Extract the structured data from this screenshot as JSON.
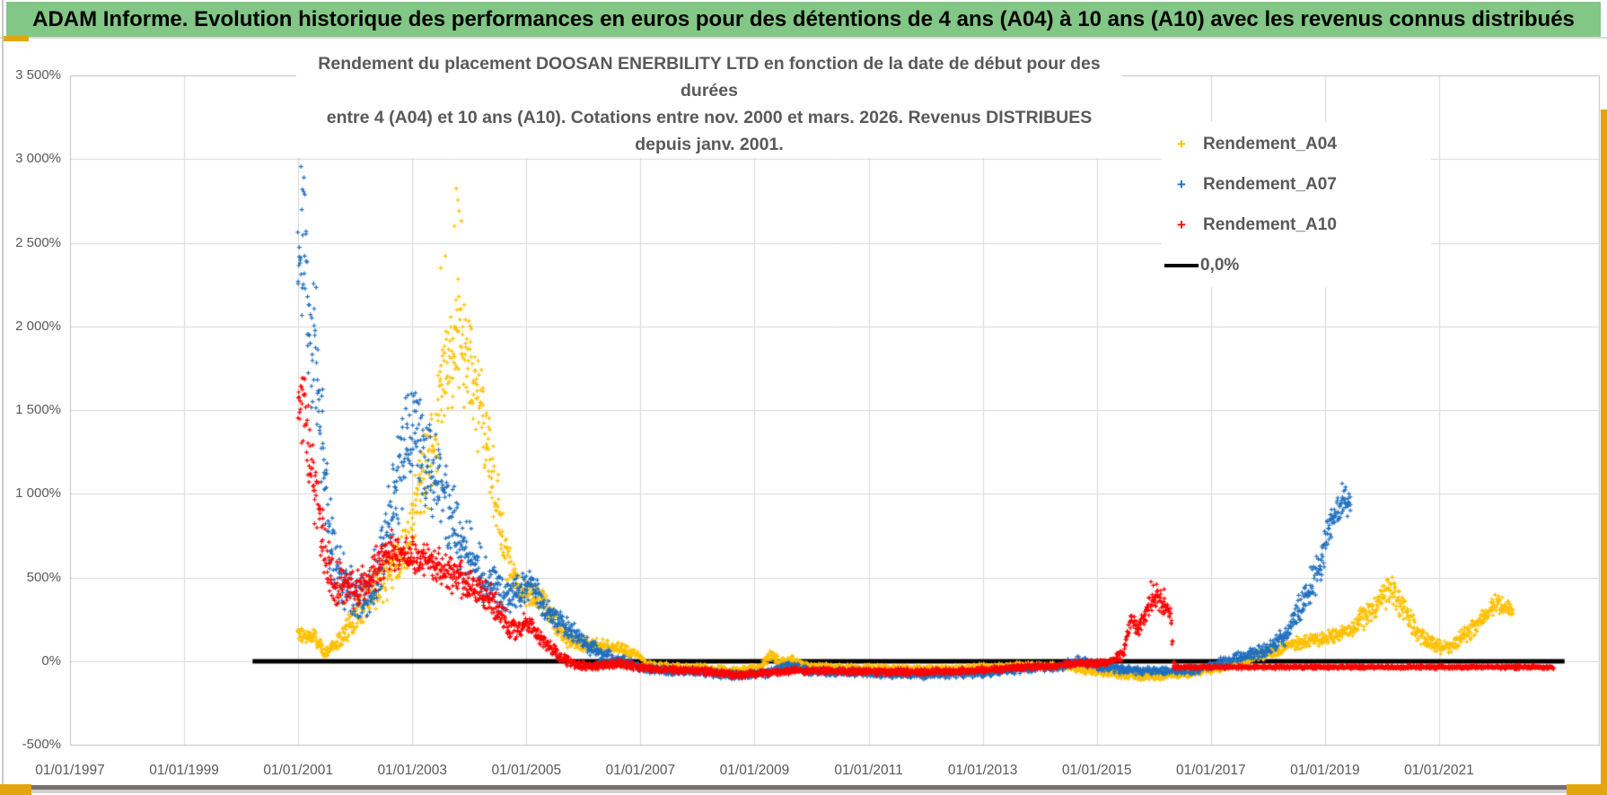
{
  "header": {
    "title": "ADAM Informe. Evolution historique des performances en euros pour des détentions de 4 ans (A04) à 10 ans (A10) avec les revenus connus distribués"
  },
  "colors": {
    "header_green": "#82c785",
    "accent_gold": "#e2a50f",
    "series_a04": "#FFC000",
    "series_a07": "#1F6FBE",
    "series_a10": "#FF0000",
    "zero_line": "#000000",
    "gridline": "#D9D9D9",
    "plot_border": "#BFBFBF",
    "axis_text": "#595959",
    "title_text": "#595959",
    "bottom_strip": "#7b6e6e"
  },
  "chart_data": {
    "type": "scatter",
    "title_line1": "Rendement du placement DOOSAN ENERBILITY LTD en fonction de la date de début pour des durées",
    "title_line2": "entre 4 (A04) et 10 ans (A10). Cotations entre nov. 2000 et mars. 2026. Revenus DISTRIBUES depuis janv. 2001.",
    "x_axis": {
      "tick_labels": [
        "01/01/1997",
        "01/01/1999",
        "01/01/2001",
        "01/01/2003",
        "01/01/2005",
        "01/01/2007",
        "01/01/2009",
        "01/01/2011",
        "01/01/2013",
        "01/01/2015",
        "01/01/2017",
        "01/01/2019",
        "01/01/2021"
      ],
      "tick_years": [
        1997,
        1999,
        2001,
        2003,
        2005,
        2007,
        2009,
        2011,
        2013,
        2015,
        2017,
        2019,
        2021
      ],
      "min_year": 1997,
      "max_year": 2023.8,
      "grid": true
    },
    "y_axis": {
      "tick_labels": [
        "3 500%",
        "3 000%",
        "2 500%",
        "2 000%",
        "1 500%",
        "1 000%",
        "500%",
        "0%",
        "-500%"
      ],
      "tick_values": [
        3500,
        3000,
        2500,
        2000,
        1500,
        1000,
        500,
        0,
        -500
      ],
      "min": -500,
      "max": 3500,
      "step": 500,
      "unit": "%",
      "grid": true
    },
    "legend": [
      {
        "label": "Rendement_A04",
        "color": "#FFC000",
        "marker": "plus"
      },
      {
        "label": "Rendement_A07",
        "color": "#1F6FBE",
        "marker": "plus"
      },
      {
        "label": "Rendement_A10",
        "color": "#FF0000",
        "marker": "plus"
      },
      {
        "label": "0,0%",
        "color": "#000000",
        "marker": "line"
      }
    ],
    "legend_position": "right-top",
    "zero_line": {
      "label": "0,0%",
      "value": 0,
      "from_year": 2000.2,
      "to_year": 2023.2,
      "color": "#000000",
      "width": 5
    },
    "series": [
      {
        "name": "Rendement_A04",
        "color": "#FFC000",
        "marker": "plus",
        "points_per_week": 3,
        "envelope": [
          [
            2001.0,
            110,
            225
          ],
          [
            2001.3,
            90,
            200
          ],
          [
            2001.45,
            0,
            90
          ],
          [
            2001.6,
            25,
            135
          ],
          [
            2001.8,
            90,
            260
          ],
          [
            2002.0,
            160,
            380
          ],
          [
            2002.2,
            230,
            520
          ],
          [
            2002.4,
            280,
            620
          ],
          [
            2002.6,
            350,
            700
          ],
          [
            2002.8,
            420,
            800
          ],
          [
            2002.95,
            550,
            1000
          ],
          [
            2003.1,
            700,
            1250
          ],
          [
            2003.25,
            850,
            1500
          ],
          [
            2003.4,
            1000,
            1750
          ],
          [
            2003.55,
            1200,
            2000
          ],
          [
            2003.7,
            1400,
            2250
          ],
          [
            2003.85,
            1550,
            2440
          ],
          [
            2003.95,
            1450,
            2300
          ],
          [
            2004.1,
            1250,
            2050
          ],
          [
            2004.25,
            1000,
            1750
          ],
          [
            2004.4,
            800,
            1450
          ],
          [
            2004.55,
            550,
            1000
          ],
          [
            2004.7,
            420,
            700
          ],
          [
            2004.9,
            320,
            540
          ],
          [
            2005.1,
            300,
            480
          ],
          [
            2005.3,
            280,
            460
          ],
          [
            2005.5,
            130,
            300
          ],
          [
            2005.75,
            60,
            170
          ],
          [
            2006.0,
            40,
            145
          ],
          [
            2006.2,
            60,
            150
          ],
          [
            2006.45,
            40,
            130
          ],
          [
            2006.7,
            30,
            110
          ],
          [
            2006.95,
            0,
            70
          ],
          [
            2007.1,
            -45,
            10
          ],
          [
            2007.5,
            -60,
            -10
          ],
          [
            2008.0,
            -60,
            -15
          ],
          [
            2008.6,
            -80,
            -30
          ],
          [
            2009.1,
            -60,
            -10
          ],
          [
            2009.28,
            -10,
            95
          ],
          [
            2009.45,
            -30,
            30
          ],
          [
            2009.65,
            -20,
            45
          ],
          [
            2009.9,
            -50,
            -5
          ],
          [
            2010.5,
            -60,
            -15
          ],
          [
            2011.5,
            -70,
            -20
          ],
          [
            2012.5,
            -65,
            -20
          ],
          [
            2013.5,
            -50,
            -5
          ],
          [
            2014.2,
            -45,
            0
          ],
          [
            2014.8,
            -80,
            -30
          ],
          [
            2015.4,
            -110,
            -55
          ],
          [
            2016.0,
            -120,
            -60
          ],
          [
            2016.6,
            -100,
            -45
          ],
          [
            2017.1,
            -70,
            -20
          ],
          [
            2017.5,
            -40,
            20
          ],
          [
            2018.0,
            10,
            90
          ],
          [
            2018.5,
            60,
            150
          ],
          [
            2019.0,
            90,
            190
          ],
          [
            2019.4,
            130,
            240
          ],
          [
            2019.7,
            180,
            350
          ],
          [
            2019.95,
            250,
            440
          ],
          [
            2020.15,
            330,
            535
          ],
          [
            2020.35,
            240,
            420
          ],
          [
            2020.55,
            130,
            280
          ],
          [
            2020.8,
            60,
            170
          ],
          [
            2021.05,
            30,
            130
          ],
          [
            2021.3,
            60,
            160
          ],
          [
            2021.55,
            120,
            250
          ],
          [
            2021.8,
            200,
            330
          ],
          [
            2022.0,
            280,
            420
          ],
          [
            2022.15,
            260,
            380
          ],
          [
            2022.3,
            250,
            330
          ]
        ],
        "extra_points": [
          [
            2003.74,
            2600
          ],
          [
            2003.77,
            2824
          ],
          [
            2003.8,
            2755
          ],
          [
            2003.82,
            2690
          ],
          [
            2003.86,
            2630
          ],
          [
            2003.58,
            2420
          ],
          [
            2003.5,
            2350
          ]
        ]
      },
      {
        "name": "Rendement_A07",
        "color": "#1F6FBE",
        "marker": "plus",
        "points_per_week": 3,
        "envelope": [
          [
            2001.0,
            1900,
            3020
          ],
          [
            2001.08,
            1800,
            2950
          ],
          [
            2001.18,
            1550,
            2650
          ],
          [
            2001.3,
            1300,
            2300
          ],
          [
            2001.4,
            900,
            1800
          ],
          [
            2001.55,
            500,
            1100
          ],
          [
            2001.7,
            300,
            750
          ],
          [
            2001.9,
            250,
            600
          ],
          [
            2002.1,
            200,
            520
          ],
          [
            2002.3,
            250,
            600
          ],
          [
            2002.5,
            400,
            900
          ],
          [
            2002.7,
            700,
            1300
          ],
          [
            2002.9,
            950,
            1700
          ],
          [
            2003.05,
            1000,
            1750
          ],
          [
            2003.2,
            900,
            1600
          ],
          [
            2003.4,
            800,
            1450
          ],
          [
            2003.6,
            650,
            1250
          ],
          [
            2003.8,
            500,
            1000
          ],
          [
            2004.0,
            420,
            850
          ],
          [
            2004.3,
            300,
            650
          ],
          [
            2004.6,
            250,
            550
          ],
          [
            2004.9,
            300,
            560
          ],
          [
            2005.1,
            380,
            560
          ],
          [
            2005.25,
            250,
            450
          ],
          [
            2005.5,
            180,
            350
          ],
          [
            2005.8,
            100,
            250
          ],
          [
            2006.05,
            40,
            160
          ],
          [
            2006.35,
            -20,
            90
          ],
          [
            2006.7,
            -40,
            40
          ],
          [
            2007.0,
            -70,
            -10
          ],
          [
            2007.5,
            -90,
            -30
          ],
          [
            2008.0,
            -90,
            -35
          ],
          [
            2008.6,
            -115,
            -55
          ],
          [
            2009.2,
            -100,
            -45
          ],
          [
            2009.6,
            -60,
            5
          ],
          [
            2010.0,
            -90,
            -35
          ],
          [
            2011.0,
            -100,
            -45
          ],
          [
            2012.0,
            -110,
            -50
          ],
          [
            2013.0,
            -100,
            -45
          ],
          [
            2013.8,
            -70,
            -15
          ],
          [
            2014.4,
            -60,
            -5
          ],
          [
            2014.65,
            -30,
            45
          ],
          [
            2015.0,
            -60,
            0
          ],
          [
            2015.5,
            -80,
            -20
          ],
          [
            2016.2,
            -90,
            -30
          ],
          [
            2016.8,
            -80,
            -20
          ],
          [
            2017.2,
            -40,
            30
          ],
          [
            2017.6,
            -10,
            70
          ],
          [
            2018.0,
            20,
            120
          ],
          [
            2018.3,
            80,
            220
          ],
          [
            2018.5,
            160,
            380
          ],
          [
            2018.7,
            280,
            520
          ],
          [
            2018.9,
            420,
            700
          ],
          [
            2019.05,
            650,
            900
          ],
          [
            2019.2,
            780,
            1010
          ],
          [
            2019.33,
            850,
            1060
          ],
          [
            2019.45,
            820,
            1000
          ]
        ],
        "extra_points": [
          [
            2001.02,
            3018
          ],
          [
            2001.05,
            2955
          ],
          [
            2001.1,
            2890
          ],
          [
            2019.3,
            1062
          ],
          [
            2019.36,
            1040
          ]
        ]
      },
      {
        "name": "Rendement_A10",
        "color": "#FF0000",
        "marker": "plus",
        "points_per_week": 3,
        "envelope": [
          [
            2001.0,
            1320,
            1820
          ],
          [
            2001.1,
            1250,
            1750
          ],
          [
            2001.2,
            950,
            1500
          ],
          [
            2001.32,
            700,
            1200
          ],
          [
            2001.45,
            450,
            900
          ],
          [
            2001.6,
            320,
            650
          ],
          [
            2001.8,
            300,
            580
          ],
          [
            2002.0,
            280,
            560
          ],
          [
            2002.2,
            330,
            620
          ],
          [
            2002.4,
            420,
            720
          ],
          [
            2002.6,
            520,
            830
          ],
          [
            2002.8,
            500,
            780
          ],
          [
            2003.0,
            480,
            760
          ],
          [
            2003.2,
            500,
            740
          ],
          [
            2003.4,
            460,
            700
          ],
          [
            2003.6,
            420,
            660
          ],
          [
            2003.8,
            380,
            620
          ],
          [
            2004.0,
            350,
            580
          ],
          [
            2004.2,
            300,
            520
          ],
          [
            2004.4,
            250,
            460
          ],
          [
            2004.6,
            160,
            330
          ],
          [
            2004.8,
            110,
            270
          ],
          [
            2005.0,
            160,
            300
          ],
          [
            2005.15,
            120,
            250
          ],
          [
            2005.35,
            40,
            160
          ],
          [
            2005.6,
            -20,
            70
          ],
          [
            2005.85,
            -50,
            20
          ],
          [
            2006.1,
            -60,
            -5
          ],
          [
            2006.4,
            -50,
            10
          ],
          [
            2006.65,
            -45,
            20
          ],
          [
            2006.9,
            -60,
            -10
          ],
          [
            2007.3,
            -75,
            -25
          ],
          [
            2008.0,
            -80,
            -30
          ],
          [
            2008.7,
            -110,
            -55
          ],
          [
            2009.3,
            -90,
            -40
          ],
          [
            2009.8,
            -80,
            -30
          ],
          [
            2010.5,
            -85,
            -35
          ],
          [
            2011.5,
            -90,
            -40
          ],
          [
            2012.5,
            -85,
            -38
          ],
          [
            2013.3,
            -70,
            -25
          ],
          [
            2013.9,
            -55,
            -10
          ],
          [
            2014.4,
            -45,
            0
          ],
          [
            2014.7,
            -35,
            15
          ],
          [
            2015.0,
            -40,
            10
          ],
          [
            2015.25,
            -30,
            20
          ],
          [
            2015.45,
            0,
            80
          ],
          [
            2015.6,
            180,
            300
          ],
          [
            2015.72,
            140,
            240
          ],
          [
            2015.85,
            220,
            360
          ],
          [
            2016.0,
            320,
            470
          ],
          [
            2016.1,
            300,
            450
          ],
          [
            2016.2,
            240,
            400
          ],
          [
            2016.3,
            230,
            330
          ],
          [
            2016.35,
            -50,
            -20
          ],
          [
            2023.0,
            -50,
            -20
          ]
        ],
        "extra_points": [
          [
            2015.95,
            475
          ],
          [
            2016.05,
            460
          ],
          [
            2016.18,
            430
          ]
        ],
        "flat_line": {
          "from_year": 2016.32,
          "to_year": 2023.0,
          "value": -35,
          "width": 4.5
        }
      }
    ]
  }
}
